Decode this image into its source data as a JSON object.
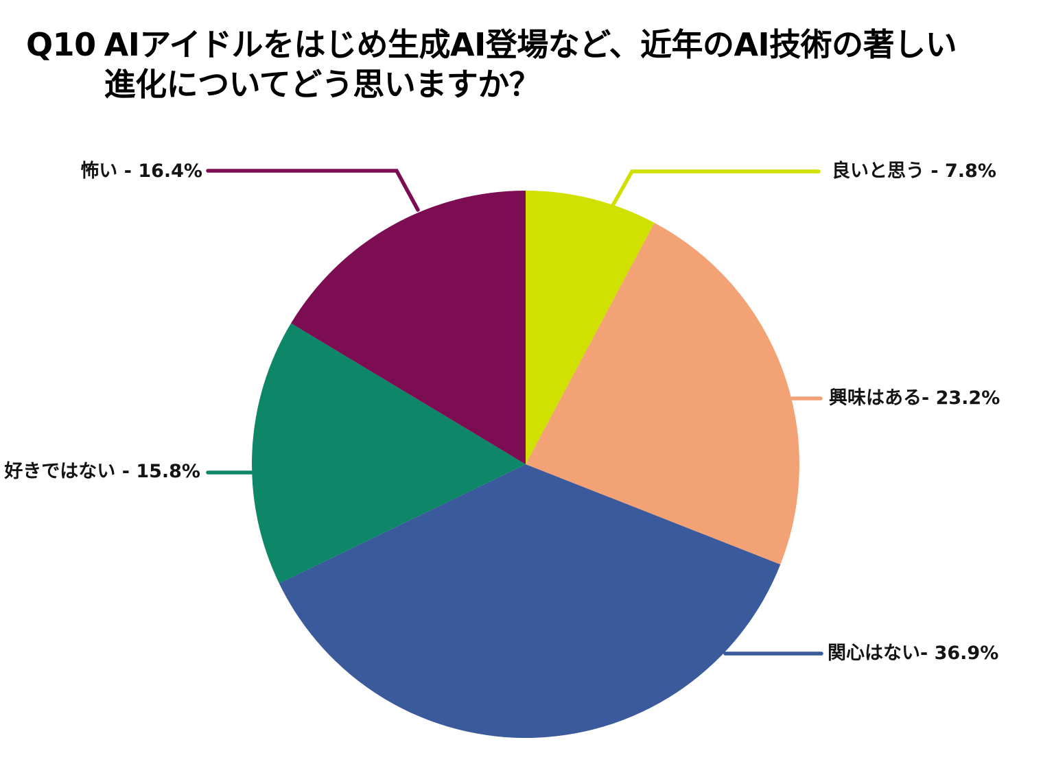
{
  "header": {
    "question_number": "Q10",
    "title_line1": "AIアイドルをはじめ生成AI登場など、近年のAI技術の著しい",
    "title_line2": "進化についてどう思いますか？"
  },
  "chart_data": {
    "type": "pie",
    "title": "Q10 AIアイドルをはじめ生成AI登場など、近年のAI技術の著しい進化についてどう思いますか？",
    "categories": [
      "良いと思う",
      "興味はある",
      "関心はない",
      "好きではない",
      "怖い"
    ],
    "values": [
      7.8,
      23.2,
      36.9,
      15.8,
      16.4
    ],
    "unit": "%",
    "colors": [
      "#d0e000",
      "#f3a276",
      "#3a5a9b",
      "#0e8668",
      "#7d0d52"
    ],
    "slugs": [
      "good",
      "interested",
      "not-interested",
      "dislike",
      "scary"
    ],
    "labels_display": [
      "良いと思う - 7.8%",
      "興味はある- 23.2%",
      "関心はない- 36.9%",
      "好きではない - 15.8%",
      "怖い - 16.4%"
    ],
    "start_angle_deg": 0,
    "direction": "clockwise",
    "legend_position": "callout-labels"
  }
}
